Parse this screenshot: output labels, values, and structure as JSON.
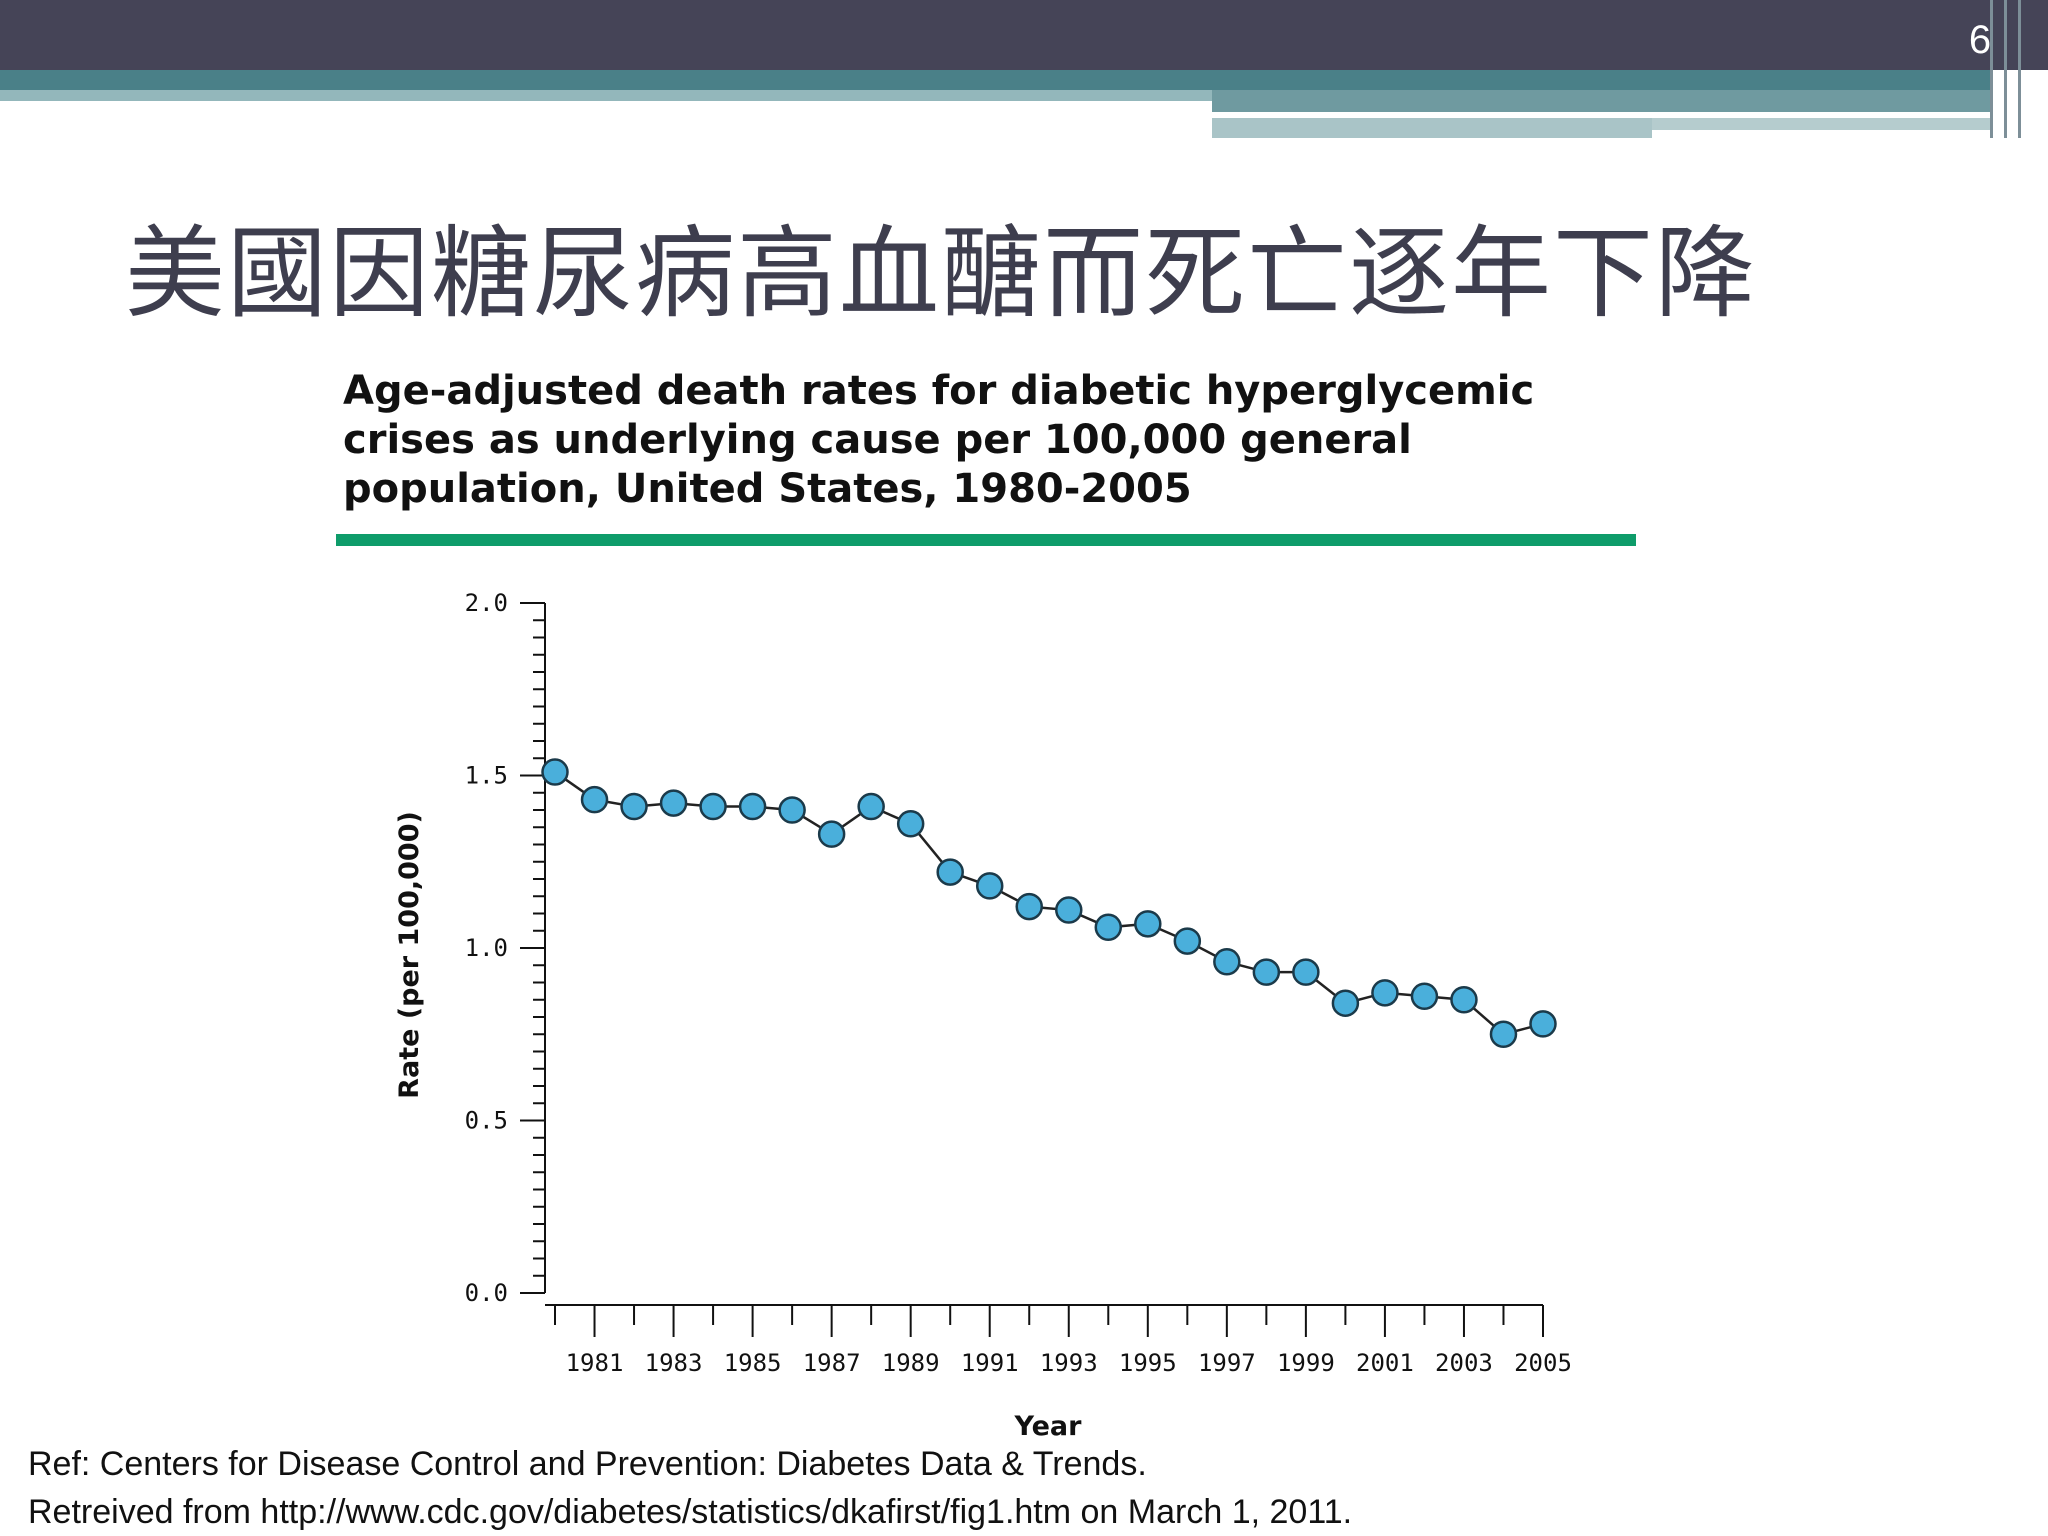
{
  "slide": {
    "page_number": "6",
    "title": "美國因糖尿病高血醣而死亡逐年下降",
    "reference_lines": [
      "Ref: Centers for Disease Control and Prevention: Diabetes Data & Trends.",
      "Retreived from http://www.cdc.gov/diabetes/statistics/dkafirst/fig1.htm on March 1, 2011."
    ]
  },
  "chart_data": {
    "type": "line",
    "title_lines": [
      "Age-adjusted death rates for diabetic hyperglycemic",
      "crises as underlying cause per 100,000 general",
      "population, United States, 1980-2005"
    ],
    "xlabel": "Year",
    "ylabel": "Rate (per 100,000)",
    "x": [
      1980,
      1981,
      1982,
      1983,
      1984,
      1985,
      1986,
      1987,
      1988,
      1989,
      1990,
      1991,
      1992,
      1993,
      1994,
      1995,
      1996,
      1997,
      1998,
      1999,
      2000,
      2001,
      2002,
      2003,
      2004,
      2005
    ],
    "values": [
      1.51,
      1.43,
      1.41,
      1.42,
      1.41,
      1.41,
      1.4,
      1.33,
      1.41,
      1.36,
      1.22,
      1.18,
      1.12,
      1.11,
      1.06,
      1.07,
      1.02,
      0.96,
      0.93,
      0.93,
      0.84,
      0.87,
      0.86,
      0.85,
      0.75,
      0.78
    ],
    "ylim": [
      0.0,
      2.0
    ],
    "y_ticks": [
      "0.0",
      "0.5",
      "1.0",
      "1.5",
      "2.0"
    ],
    "x_tick_labels": [
      "1981",
      "1983",
      "1985",
      "1987",
      "1989",
      "1991",
      "1993",
      "1995",
      "1997",
      "1999",
      "2001",
      "2003",
      "2005"
    ],
    "marker_color": "#4aafdb",
    "marker_edge_color": "#1b3a4a",
    "line_color": "#222222",
    "rule_color": "#0e9c6a"
  }
}
